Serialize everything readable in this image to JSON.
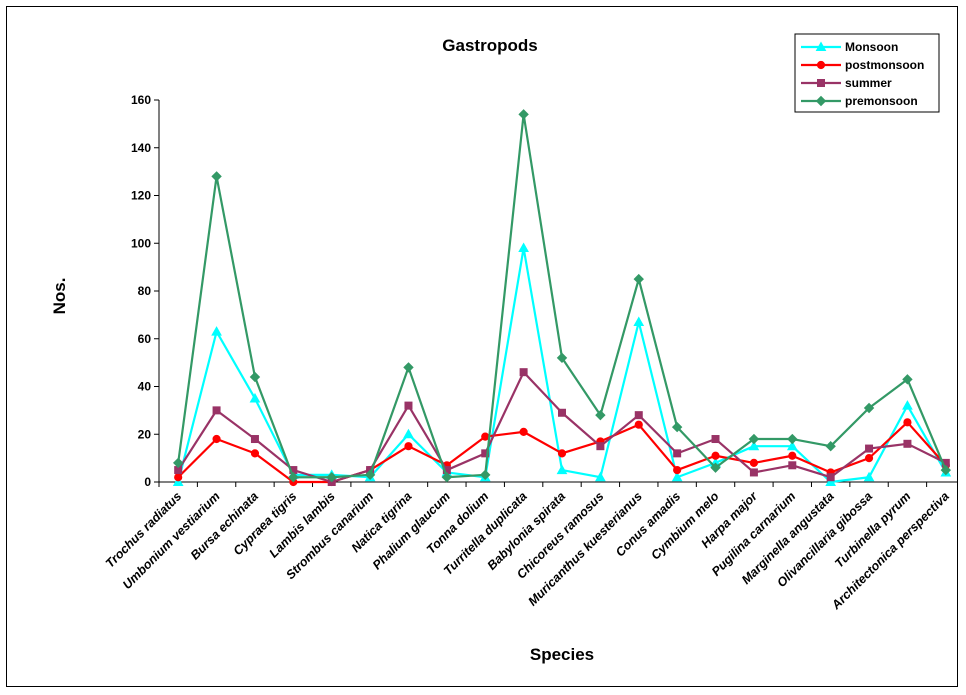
{
  "chart_data": {
    "type": "line",
    "title": "Gastropods",
    "xlabel": "Species",
    "ylabel": "Nos.",
    "ylim": [
      0,
      160
    ],
    "yticks": [
      0,
      20,
      40,
      60,
      80,
      100,
      120,
      140,
      160
    ],
    "grid": false,
    "legend_position": "top-right",
    "categories": [
      "Trochus radiatus",
      "Umbonium vestiarium",
      "Bursa echinata",
      "Cypraea tigris",
      "Lambis lambis",
      "Strombus canarium",
      "Natica tigrina",
      "Phalium glaucum",
      "Tonna dolium",
      "Turritella duplicata",
      "Babylonia spirata",
      "Chicoreus ramosus",
      "Muricanthus kuesterianus",
      "Conus amadis",
      "Cymbium melo",
      "Harpa major",
      "Pugilina carnarium",
      "Marginella angustata",
      "Olivancillaria gibossa",
      "Turbinella pyrum",
      "Architectonica perspectiva"
    ],
    "series": [
      {
        "name": "Monsoon",
        "color": "#00ffff",
        "marker": "triangle",
        "values": [
          0,
          63,
          35,
          3,
          3,
          2,
          20,
          4,
          2,
          98,
          5,
          2,
          67,
          2,
          8,
          15,
          15,
          0,
          2,
          32,
          4
        ]
      },
      {
        "name": "postmonsoon",
        "color": "#ff0000",
        "marker": "circle",
        "values": [
          2,
          18,
          12,
          0,
          0,
          5,
          15,
          7,
          19,
          21,
          12,
          17,
          24,
          5,
          11,
          8,
          11,
          4,
          10,
          25,
          7
        ]
      },
      {
        "name": "summer",
        "color": "#993366",
        "marker": "square",
        "values": [
          5,
          30,
          18,
          5,
          0,
          5,
          32,
          5,
          12,
          46,
          29,
          15,
          28,
          12,
          18,
          4,
          7,
          2,
          14,
          16,
          8
        ]
      },
      {
        "name": "premonsoon",
        "color": "#339966",
        "marker": "diamond",
        "values": [
          8,
          128,
          44,
          2,
          2,
          3,
          48,
          2,
          3,
          154,
          52,
          28,
          85,
          23,
          6,
          18,
          18,
          15,
          31,
          43,
          5
        ]
      }
    ]
  }
}
